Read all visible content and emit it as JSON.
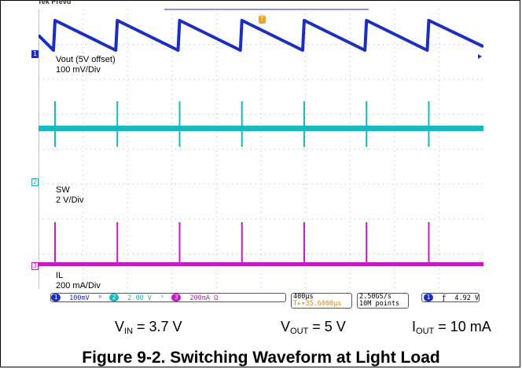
{
  "header_partial": "Tek Prevu",
  "chart_data": {
    "type": "line",
    "time_per_div": "400µs",
    "grid": true,
    "grid_divisions": {
      "x": 10,
      "y": 8
    },
    "series": [
      {
        "name": "Vout (5V offset)",
        "scale": "100 mV/Div",
        "channel": "1",
        "color": "#1a2fc0",
        "shape": "sawtooth",
        "period_div": 1.4
      },
      {
        "name": "SW",
        "scale": "2 V/Div",
        "channel": "2",
        "color": "#17b8bf",
        "shape": "switching pulses",
        "period_div": 1.4
      },
      {
        "name": "IL",
        "scale": "200 mA/Div",
        "channel": "3",
        "color": "#c51bc0",
        "shape": "current pulses",
        "period_div": 1.4
      }
    ],
    "trigger_marker": "T"
  },
  "status_bar": {
    "ch1_num": "1",
    "ch1_scale": "100mV",
    "ch1_bw": "ᵇ",
    "ch2_num": "2",
    "ch2_scale": "2.00 V",
    "ch2_bw": "ᵇ",
    "ch3_num": "3",
    "ch3_scale": "200mA Ω",
    "timebase": "400µs",
    "trigger_pos": "T▸▾35.6000µs",
    "sample_rate": "2.50GS/s",
    "record_length": "10M points",
    "trig_ch": "1",
    "trig_slope": "ƒ",
    "trig_level": "4.92 V"
  },
  "conditions": {
    "vin_main": "V",
    "vin_sub": "IN",
    "vin_value": " = 3.7 V",
    "vout_main": "V",
    "vout_sub": "OUT",
    "vout_value": " = 5 V",
    "iout_main": "I",
    "iout_sub": "OUT",
    "iout_value": " = 10 mA"
  },
  "caption": "Figure 9-2. Switching Waveform at Light Load",
  "colors": {
    "ch1": "#1a2fc0",
    "ch2": "#17b8bf",
    "ch3": "#c51bc0",
    "trigger": "#f0a020"
  }
}
